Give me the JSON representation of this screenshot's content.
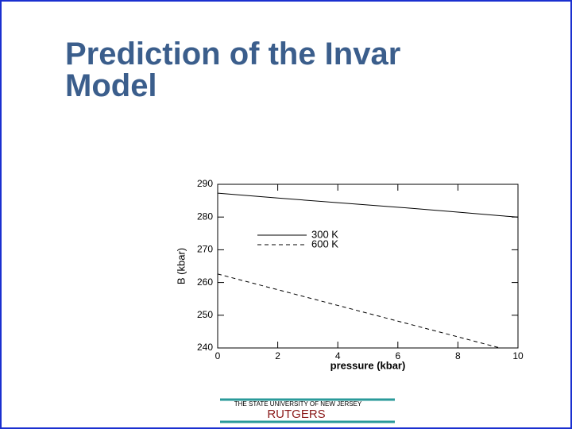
{
  "slide": {
    "title_lines": [
      "Prediction of the Invar",
      "Model"
    ],
    "footer": {
      "university": "THE STATE UNIVERSITY OF NEW JERSEY",
      "name": "RUTGERS"
    }
  },
  "chart_data": {
    "type": "line",
    "x_label": "pressure (kbar)",
    "y_label": "B (kbar)",
    "x": [
      0,
      2,
      4,
      6,
      8,
      9.4,
      10
    ],
    "series": [
      {
        "name": "300 K",
        "color": "#000000",
        "dash": false,
        "values": [
          287.3,
          285.8,
          284.4,
          283,
          281.5,
          280.4,
          280
        ]
      },
      {
        "name": "600 K",
        "color": "#000000",
        "dash": true,
        "values": [
          262.6,
          257.8,
          253,
          248.2,
          243.4,
          240,
          null
        ]
      }
    ],
    "xlim": [
      0,
      10
    ],
    "ylim": [
      240,
      290
    ],
    "xticks": [
      0,
      2,
      4,
      6,
      8,
      10
    ],
    "yticks": [
      240,
      250,
      260,
      270,
      280,
      290
    ]
  }
}
